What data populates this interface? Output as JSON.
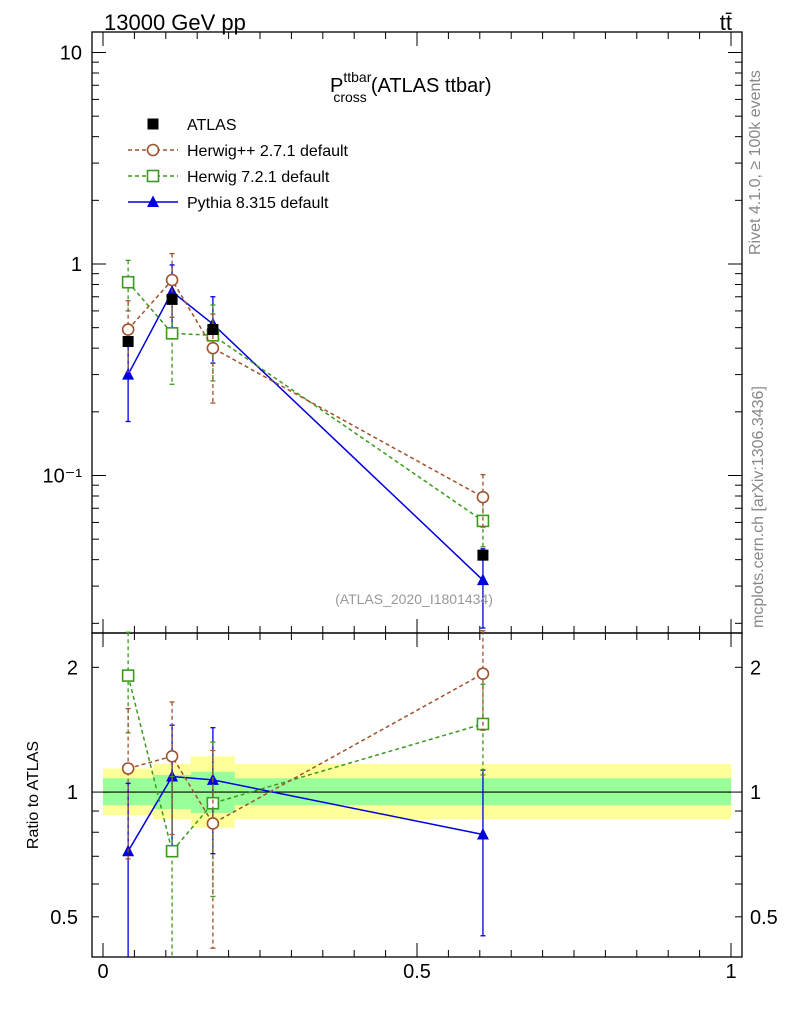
{
  "header": {
    "left": "13000 GeV pp",
    "right": "tt̄"
  },
  "side_texts": {
    "rivet": "Rivet 4.1.0, ≥ 100k events",
    "mcplots": "mcplots.cern.ch [arXiv:1306.3436]"
  },
  "title": {
    "base": "P",
    "sup": "ttbar",
    "sub": "cross",
    "suffix": "(ATLAS ttbar)"
  },
  "watermark": "(ATLAS_2020_I1801434)",
  "colors": {
    "atlas": "#000000",
    "herwig_pp": "#a0522d",
    "herwig7": "#3c9a1e",
    "pythia": "#0000dd",
    "band_inner": "#99ff99",
    "band_outer": "#ffff99"
  },
  "chart_data": [
    {
      "type": "scatter",
      "panel": "main",
      "yscale": "log",
      "xlim": [
        0,
        1
      ],
      "ylim": [
        0.018,
        12.5
      ],
      "ytick_values": [
        0.1,
        1,
        10
      ],
      "ytick_labels": [
        "10⁻¹",
        "1",
        "10"
      ],
      "x": [
        0.04,
        0.11,
        0.175,
        0.605
      ],
      "bin_edges": [
        0.0,
        0.08,
        0.14,
        0.21,
        1.0
      ],
      "series": [
        {
          "name": "ATLAS",
          "marker": "filled-square",
          "values": [
            0.43,
            0.68,
            0.49,
            0.042
          ],
          "err": [
            0,
            0,
            0,
            0
          ]
        },
        {
          "name": "Herwig++ 2.7.1 default",
          "marker": "open-circle",
          "values": [
            0.49,
            0.84,
            0.4,
            0.079
          ],
          "err": [
            0.18,
            0.28,
            0.18,
            0.022
          ]
        },
        {
          "name": "Herwig 7.2.1 default",
          "marker": "open-square",
          "values": [
            0.82,
            0.47,
            0.46,
            0.061
          ],
          "err": [
            0.22,
            0.2,
            0.18,
            0.015
          ]
        },
        {
          "name": "Pythia 8.315 default",
          "marker": "filled-triangle",
          "values": [
            0.3,
            0.74,
            0.52,
            0.032
          ],
          "err": [
            0.12,
            0.25,
            0.18,
            0.013
          ]
        }
      ]
    },
    {
      "type": "scatter",
      "panel": "ratio",
      "ylabel": "Ratio to ATLAS",
      "xlim": [
        0,
        1
      ],
      "ylim": [
        0.4,
        2.42
      ],
      "ytick_values": [
        0.5,
        1,
        2
      ],
      "ytick_labels": [
        "0.5",
        "1",
        "2"
      ],
      "xtick_values": [
        0,
        0.5,
        1
      ],
      "xtick_labels": [
        "0",
        "0.5",
        "1"
      ],
      "x": [
        0.04,
        0.11,
        0.175,
        0.605
      ],
      "band_inner": [
        [
          0.0,
          0.08,
          0.93,
          1.08
        ],
        [
          0.08,
          0.14,
          0.91,
          1.1
        ],
        [
          0.14,
          0.21,
          0.89,
          1.12
        ],
        [
          0.21,
          1.0,
          0.93,
          1.08
        ]
      ],
      "band_outer": [
        [
          0.0,
          0.08,
          0.88,
          1.14
        ],
        [
          0.08,
          0.14,
          0.86,
          1.17
        ],
        [
          0.14,
          0.21,
          0.82,
          1.22
        ],
        [
          0.21,
          1.0,
          0.86,
          1.17
        ]
      ],
      "series": [
        {
          "name": "Herwig++ 2.7.1 default",
          "values": [
            1.14,
            1.22,
            0.84,
            1.93
          ],
          "err": [
            0.45,
            0.43,
            0.42,
            0.52
          ]
        },
        {
          "name": "Herwig 7.2.1 default",
          "values": [
            1.91,
            0.72,
            0.94,
            1.46
          ],
          "err": [
            0.52,
            0.37,
            0.38,
            0.36
          ]
        },
        {
          "name": "Pythia 8.315 default",
          "values": [
            0.72,
            1.09,
            1.07,
            0.79
          ],
          "err": [
            0.33,
            0.36,
            0.36,
            0.34
          ]
        }
      ]
    }
  ]
}
